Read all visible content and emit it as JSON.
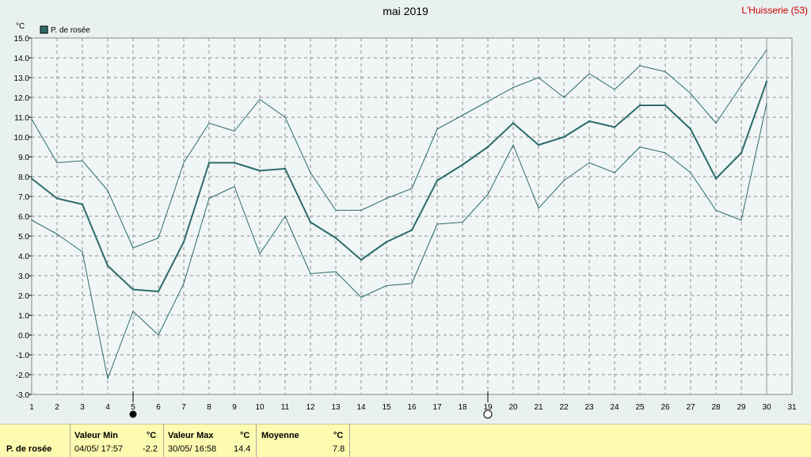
{
  "title": "mai 2019",
  "station": "L'Huisserie (53)",
  "colors": {
    "background": "#e8f0f0",
    "plot": "#f0f6f6",
    "line": "#2f6b6b",
    "grid": "#8c8c8c",
    "footer": "#fffbb0"
  },
  "chart_data": {
    "type": "line",
    "yunit": "°C",
    "legend": [
      "P. de rosée"
    ],
    "legend_placement": "top-left",
    "grid": true,
    "xlim": [
      1,
      31
    ],
    "ylim": [
      -3.0,
      15.0
    ],
    "x_ticks": [
      1,
      2,
      3,
      4,
      5,
      6,
      7,
      8,
      9,
      10,
      11,
      12,
      13,
      14,
      15,
      16,
      17,
      18,
      19,
      20,
      21,
      22,
      23,
      24,
      25,
      26,
      27,
      28,
      29,
      30,
      31
    ],
    "y_ticks": [
      "-3.0",
      "-2.0",
      "-1.0",
      "0.0",
      "1.0",
      "2.0",
      "3.0",
      "4.0",
      "5.0",
      "6.0",
      "7.0",
      "8.0",
      "9.0",
      "10.0",
      "11.0",
      "12.0",
      "13.0",
      "14.0",
      "15.0"
    ],
    "series": [
      {
        "name": "P. de rosée",
        "role": "mean",
        "x": [
          1,
          2,
          3,
          4,
          5,
          6,
          7,
          8,
          9,
          10,
          11,
          12,
          13,
          14,
          15,
          16,
          17,
          18,
          19,
          20,
          21,
          22,
          23,
          24,
          25,
          26,
          27,
          28,
          29,
          30
        ],
        "values": [
          7.9,
          6.9,
          6.6,
          3.5,
          2.3,
          2.2,
          4.7,
          8.7,
          8.7,
          8.3,
          8.4,
          5.7,
          4.9,
          3.8,
          4.7,
          5.3,
          7.8,
          8.6,
          9.5,
          10.7,
          9.6,
          10.0,
          10.8,
          10.5,
          11.6,
          11.6,
          10.4,
          7.9,
          9.2,
          12.8
        ]
      },
      {
        "role": "max",
        "x": [
          1,
          2,
          3,
          4,
          5,
          6,
          7,
          8,
          9,
          10,
          11,
          12,
          13,
          14,
          15,
          16,
          17,
          18,
          19,
          20,
          21,
          22,
          23,
          24,
          25,
          26,
          27,
          28,
          29,
          30
        ],
        "values": [
          10.9,
          8.7,
          8.8,
          7.3,
          4.4,
          4.9,
          8.7,
          10.7,
          10.3,
          11.9,
          11.0,
          8.2,
          6.3,
          6.3,
          6.9,
          7.4,
          10.4,
          11.1,
          11.8,
          12.5,
          13.0,
          12.0,
          13.2,
          12.4,
          13.6,
          13.3,
          12.2,
          10.7,
          12.6,
          14.4
        ]
      },
      {
        "role": "min",
        "x": [
          1,
          2,
          3,
          4,
          5,
          6,
          7,
          8,
          9,
          10,
          11,
          12,
          13,
          14,
          15,
          16,
          17,
          18,
          19,
          20,
          21,
          22,
          23,
          24,
          25,
          26,
          27,
          28,
          29,
          30
        ],
        "values": [
          5.8,
          5.1,
          4.2,
          -2.2,
          1.2,
          0.0,
          2.6,
          6.9,
          7.5,
          4.1,
          6.0,
          3.1,
          3.2,
          1.9,
          2.5,
          2.6,
          5.6,
          5.7,
          7.1,
          9.6,
          6.4,
          7.8,
          8.7,
          8.2,
          9.5,
          9.2,
          8.2,
          6.3,
          5.8,
          11.7
        ]
      }
    ],
    "moon": [
      {
        "x": 5,
        "phase": "new"
      },
      {
        "x": 19,
        "phase": "full"
      }
    ],
    "marker_line_x": 30
  },
  "stats": {
    "label": "P. de rosée",
    "min": {
      "header": "Valeur Min",
      "unit": "°C",
      "date": "04/05/ 17:57",
      "value": "-2.2"
    },
    "max": {
      "header": "Valeur Max",
      "unit": "°C",
      "date": "30/05/ 16:58",
      "value": "14.4"
    },
    "avg": {
      "header": "Moyenne",
      "unit": "°C",
      "value": "7.8"
    }
  }
}
